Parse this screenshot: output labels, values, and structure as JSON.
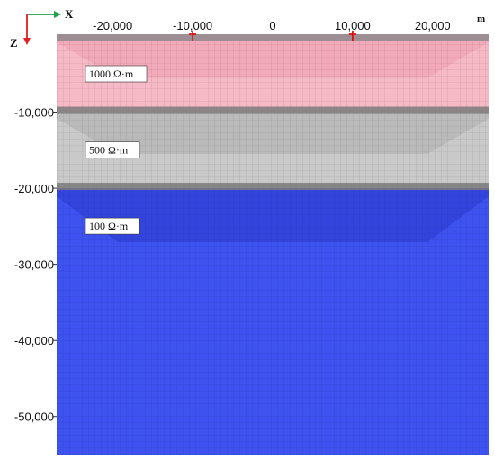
{
  "axes": {
    "x_letter": "X",
    "z_letter": "Z",
    "x_unit": "m",
    "x_ticks": [
      {
        "value": -20000,
        "label": "-20,000"
      },
      {
        "value": -10000,
        "label": "-10,000"
      },
      {
        "value": 0,
        "label": "0"
      },
      {
        "value": 10000,
        "label": "10,000"
      },
      {
        "value": 20000,
        "label": "20,000"
      }
    ],
    "z_ticks": [
      {
        "value": -10000,
        "label": "-10,000"
      },
      {
        "value": -20000,
        "label": "-20,000"
      },
      {
        "value": -30000,
        "label": "-30,000"
      },
      {
        "value": -40000,
        "label": "-40,000"
      },
      {
        "value": -50000,
        "label": "-50,000"
      }
    ],
    "x_range": [
      -27000,
      27000
    ],
    "z_range": [
      0,
      -55000
    ],
    "x_arrow_color": "#22a04a",
    "z_arrow_color": "#dd2222"
  },
  "layers": [
    {
      "label": "1000 Ω·m",
      "top": 0,
      "bottom": -10000,
      "color": "#f7b9c6",
      "transition_color": "#f0a2b4"
    },
    {
      "label": "500 Ω·m",
      "top": -10000,
      "bottom": -20000,
      "color": "#c9c9c9",
      "transition_color": "#b4b4b4"
    },
    {
      "label": "100 Ω·m",
      "top": -20000,
      "bottom": -55000,
      "color": "#3d52ee",
      "transition_color": "#2f3fd6"
    }
  ],
  "stations": [
    {
      "x": -10000,
      "color": "#dd1111"
    },
    {
      "x": 10000,
      "color": "#dd1111"
    }
  ],
  "colors": {
    "surface_band": "#9c8e93",
    "interface_band": "#7a7a7a",
    "grid_line": "rgba(60,60,60,0.28)"
  }
}
